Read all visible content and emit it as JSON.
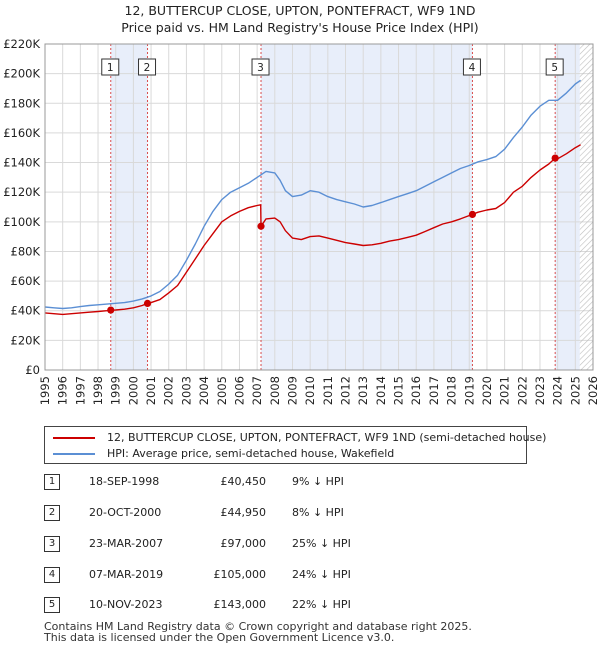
{
  "title_line1": "12, BUTTERCUP CLOSE, UPTON, PONTEFRACT, WF9 1ND",
  "title_line2": "Price paid vs. HM Land Registry's House Price Index (HPI)",
  "chart_data": {
    "type": "line",
    "title": "12, BUTTERCUP CLOSE, UPTON, PONTEFRACT, WF9 1ND — Price paid vs. HM Land Registry's House Price Index (HPI)",
    "xlabel": "",
    "ylabel": "",
    "xlim": [
      1995,
      2026
    ],
    "ylim": [
      0,
      220000
    ],
    "x_ticks": [
      1995,
      1996,
      1997,
      1998,
      1999,
      2000,
      2001,
      2002,
      2003,
      2004,
      2005,
      2006,
      2007,
      2008,
      2009,
      2010,
      2011,
      2012,
      2013,
      2014,
      2015,
      2016,
      2017,
      2018,
      2019,
      2020,
      2021,
      2022,
      2023,
      2024,
      2025,
      2026
    ],
    "y_ticks": [
      0,
      20000,
      40000,
      60000,
      80000,
      100000,
      120000,
      140000,
      160000,
      180000,
      200000,
      220000
    ],
    "y_tick_labels": [
      "£0",
      "£20K",
      "£40K",
      "£60K",
      "£80K",
      "£100K",
      "£120K",
      "£140K",
      "£160K",
      "£180K",
      "£200K",
      "£220K"
    ],
    "grid": true,
    "colors": {
      "property": "#cc0000",
      "hpi": "#5b8fd4",
      "shade": "#e8eefa",
      "hatch": "#c8c8c8",
      "marker_line": "#d94c4c"
    },
    "future_hatch_start": 2025.25,
    "series": [
      {
        "name": "12, BUTTERCUP CLOSE, UPTON, PONTEFRACT, WF9 1ND (semi-detached house)",
        "color": "#cc0000",
        "points": [
          [
            1995.0,
            38500
          ],
          [
            1995.5,
            38000
          ],
          [
            1996.0,
            37500
          ],
          [
            1996.5,
            38000
          ],
          [
            1997.0,
            38500
          ],
          [
            1997.5,
            39000
          ],
          [
            1998.0,
            39500
          ],
          [
            1998.5,
            40000
          ],
          [
            1998.72,
            40450
          ],
          [
            1999.0,
            40500
          ],
          [
            1999.5,
            41000
          ],
          [
            2000.0,
            42000
          ],
          [
            2000.5,
            43500
          ],
          [
            2000.8,
            44950
          ],
          [
            2001.0,
            45500
          ],
          [
            2001.5,
            47500
          ],
          [
            2002.0,
            52000
          ],
          [
            2002.5,
            57000
          ],
          [
            2003.0,
            66000
          ],
          [
            2003.5,
            75000
          ],
          [
            2004.0,
            84000
          ],
          [
            2004.5,
            92000
          ],
          [
            2005.0,
            100000
          ],
          [
            2005.5,
            104000
          ],
          [
            2006.0,
            107000
          ],
          [
            2006.5,
            109500
          ],
          [
            2007.0,
            111000
          ],
          [
            2007.2,
            111500
          ],
          [
            2007.22,
            97000
          ],
          [
            2007.5,
            102000
          ],
          [
            2008.0,
            102500
          ],
          [
            2008.3,
            100000
          ],
          [
            2008.6,
            94000
          ],
          [
            2009.0,
            89000
          ],
          [
            2009.5,
            88000
          ],
          [
            2010.0,
            90000
          ],
          [
            2010.5,
            90500
          ],
          [
            2011.0,
            89000
          ],
          [
            2011.5,
            87500
          ],
          [
            2012.0,
            86000
          ],
          [
            2012.5,
            85000
          ],
          [
            2013.0,
            84000
          ],
          [
            2013.5,
            84500
          ],
          [
            2014.0,
            85500
          ],
          [
            2014.5,
            87000
          ],
          [
            2015.0,
            88000
          ],
          [
            2015.5,
            89500
          ],
          [
            2016.0,
            91000
          ],
          [
            2016.5,
            93500
          ],
          [
            2017.0,
            96000
          ],
          [
            2017.5,
            98500
          ],
          [
            2018.0,
            100000
          ],
          [
            2018.5,
            102000
          ],
          [
            2019.18,
            105000
          ],
          [
            2019.5,
            106500
          ],
          [
            2020.0,
            108000
          ],
          [
            2020.5,
            109000
          ],
          [
            2021.0,
            113000
          ],
          [
            2021.5,
            120000
          ],
          [
            2022.0,
            124000
          ],
          [
            2022.5,
            130000
          ],
          [
            2023.0,
            135000
          ],
          [
            2023.5,
            139000
          ],
          [
            2023.86,
            143000
          ],
          [
            2024.0,
            142500
          ],
          [
            2024.5,
            146000
          ],
          [
            2025.0,
            150000
          ],
          [
            2025.3,
            152000
          ]
        ]
      },
      {
        "name": "HPI: Average price, semi-detached house, Wakefield",
        "color": "#5b8fd4",
        "points": [
          [
            1995.0,
            42500
          ],
          [
            1995.5,
            42000
          ],
          [
            1996.0,
            41500
          ],
          [
            1996.5,
            42000
          ],
          [
            1997.0,
            42800
          ],
          [
            1997.5,
            43500
          ],
          [
            1998.0,
            44000
          ],
          [
            1998.5,
            44500
          ],
          [
            1999.0,
            45000
          ],
          [
            1999.5,
            45500
          ],
          [
            2000.0,
            46500
          ],
          [
            2000.5,
            48000
          ],
          [
            2001.0,
            50000
          ],
          [
            2001.5,
            53000
          ],
          [
            2002.0,
            58000
          ],
          [
            2002.5,
            64000
          ],
          [
            2003.0,
            74000
          ],
          [
            2003.5,
            85000
          ],
          [
            2004.0,
            97000
          ],
          [
            2004.5,
            107000
          ],
          [
            2005.0,
            115000
          ],
          [
            2005.5,
            120000
          ],
          [
            2006.0,
            123000
          ],
          [
            2006.5,
            126000
          ],
          [
            2007.0,
            130000
          ],
          [
            2007.5,
            134000
          ],
          [
            2008.0,
            133000
          ],
          [
            2008.3,
            128000
          ],
          [
            2008.6,
            121000
          ],
          [
            2009.0,
            117000
          ],
          [
            2009.5,
            118000
          ],
          [
            2010.0,
            121000
          ],
          [
            2010.5,
            120000
          ],
          [
            2011.0,
            117000
          ],
          [
            2011.5,
            115000
          ],
          [
            2012.0,
            113500
          ],
          [
            2012.5,
            112000
          ],
          [
            2013.0,
            110000
          ],
          [
            2013.5,
            111000
          ],
          [
            2014.0,
            113000
          ],
          [
            2014.5,
            115000
          ],
          [
            2015.0,
            117000
          ],
          [
            2015.5,
            119000
          ],
          [
            2016.0,
            121000
          ],
          [
            2016.5,
            124000
          ],
          [
            2017.0,
            127000
          ],
          [
            2017.5,
            130000
          ],
          [
            2018.0,
            133000
          ],
          [
            2018.5,
            136000
          ],
          [
            2019.0,
            138000
          ],
          [
            2019.5,
            140500
          ],
          [
            2020.0,
            142000
          ],
          [
            2020.5,
            144000
          ],
          [
            2021.0,
            149000
          ],
          [
            2021.5,
            157000
          ],
          [
            2022.0,
            164000
          ],
          [
            2022.5,
            172000
          ],
          [
            2023.0,
            178000
          ],
          [
            2023.5,
            182000
          ],
          [
            2024.0,
            182000
          ],
          [
            2024.5,
            187000
          ],
          [
            2025.0,
            193000
          ],
          [
            2025.3,
            195500
          ]
        ]
      }
    ],
    "sales": [
      {
        "num": "1",
        "x": 1998.72,
        "price": 40450
      },
      {
        "num": "2",
        "x": 2000.8,
        "price": 44950
      },
      {
        "num": "3",
        "x": 2007.22,
        "price": 97000
      },
      {
        "num": "4",
        "x": 2019.18,
        "price": 105000
      },
      {
        "num": "5",
        "x": 2023.86,
        "price": 143000
      }
    ],
    "shaded_periods": [
      [
        1998.72,
        2000.8
      ],
      [
        2007.22,
        2019.18
      ],
      [
        2023.86,
        2025.25
      ]
    ]
  },
  "legend": [
    {
      "label": "12, BUTTERCUP CLOSE, UPTON, PONTEFRACT, WF9 1ND (semi-detached house)",
      "color": "#cc0000"
    },
    {
      "label": "HPI: Average price, semi-detached house, Wakefield",
      "color": "#5b8fd4"
    }
  ],
  "table": [
    {
      "num": "1",
      "date": "18-SEP-1998",
      "price": "£40,450",
      "hpi": "9% ↓ HPI"
    },
    {
      "num": "2",
      "date": "20-OCT-2000",
      "price": "£44,950",
      "hpi": "8% ↓ HPI"
    },
    {
      "num": "3",
      "date": "23-MAR-2007",
      "price": "£97,000",
      "hpi": "25% ↓ HPI"
    },
    {
      "num": "4",
      "date": "07-MAR-2019",
      "price": "£105,000",
      "hpi": "24% ↓ HPI"
    },
    {
      "num": "5",
      "date": "10-NOV-2023",
      "price": "£143,000",
      "hpi": "22% ↓ HPI"
    }
  ],
  "footer_line1": "Contains HM Land Registry data © Crown copyright and database right 2025.",
  "footer_line2": "This data is licensed under the Open Government Licence v3.0."
}
